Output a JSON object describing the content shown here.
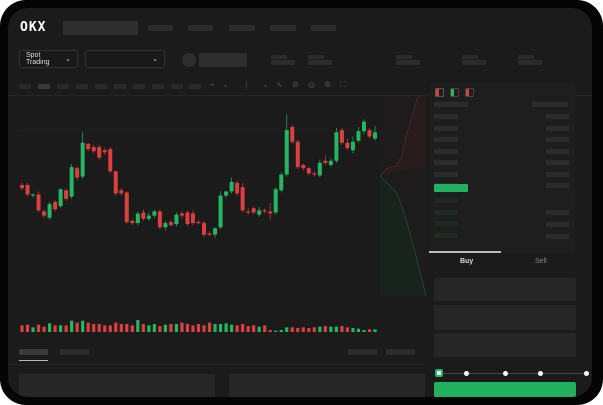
{
  "header": {
    "logo": "OKX",
    "market_selector": "Spot Trading",
    "pair_selector": ""
  },
  "toolbar": {
    "icons": [
      "line-chart-icon",
      "ruler-icon",
      "camera-icon",
      "settings-icon",
      "fullscreen-icon"
    ]
  },
  "order_panel": {
    "tabs": [
      {
        "label": "Buy"
      },
      {
        "label": "Sell"
      }
    ],
    "active_tab": "Buy",
    "slider_percent": 0,
    "slider_marks": [
      0,
      25,
      50,
      75,
      100
    ]
  },
  "colors": {
    "up": "#26b562",
    "down": "#d9403f",
    "background": "#1b1b1b",
    "accent": "#22b15f"
  },
  "chart_data": {
    "type": "candlestick",
    "title": "",
    "xlabel": "",
    "ylabel": "",
    "grid": true,
    "ohlc": [
      [
        68,
        70,
        63,
        65
      ],
      [
        68,
        70,
        57,
        59
      ],
      [
        58,
        60,
        56,
        59
      ],
      [
        59,
        62,
        42,
        44
      ],
      [
        43,
        45,
        37,
        39
      ],
      [
        37,
        52,
        35,
        50
      ],
      [
        52,
        54,
        43,
        45
      ],
      [
        48,
        65,
        46,
        64
      ],
      [
        63,
        65,
        53,
        55
      ],
      [
        57,
        88,
        55,
        85
      ],
      [
        84,
        86,
        73,
        75
      ],
      [
        76,
        118,
        74,
        108
      ],
      [
        107,
        108,
        100,
        102
      ],
      [
        104,
        106,
        98,
        100
      ],
      [
        104,
        106,
        92,
        94
      ],
      [
        101,
        103,
        97,
        99
      ],
      [
        102,
        104,
        79,
        81
      ],
      [
        81,
        82,
        58,
        60
      ],
      [
        63,
        65,
        58,
        60
      ],
      [
        61,
        62,
        31,
        33
      ],
      [
        34,
        36,
        30,
        32
      ],
      [
        32,
        43,
        30,
        41
      ],
      [
        42,
        45,
        34,
        36
      ],
      [
        36,
        42,
        34,
        39
      ],
      [
        39,
        45,
        37,
        43
      ],
      [
        43,
        45,
        26,
        28
      ],
      [
        28,
        34,
        25,
        32
      ],
      [
        33,
        35,
        29,
        30
      ],
      [
        31,
        42,
        29,
        40
      ],
      [
        41,
        43,
        37,
        39
      ],
      [
        42,
        44,
        29,
        31
      ],
      [
        41,
        44,
        30,
        32
      ],
      [
        33,
        35,
        31,
        32
      ],
      [
        32,
        34,
        19,
        21
      ],
      [
        22,
        24,
        20,
        21
      ],
      [
        21,
        28,
        18,
        27
      ],
      [
        28,
        62,
        26,
        58
      ],
      [
        58,
        62,
        56,
        62
      ],
      [
        62,
        75,
        60,
        71
      ],
      [
        70,
        72,
        58,
        60
      ],
      [
        66,
        70,
        42,
        44
      ],
      [
        43,
        46,
        40,
        42
      ],
      [
        46,
        48,
        40,
        42
      ],
      [
        40,
        47,
        38,
        44
      ],
      [
        44,
        46,
        41,
        43
      ],
      [
        43,
        51,
        35,
        41
      ],
      [
        42,
        66,
        40,
        64
      ],
      [
        63,
        80,
        61,
        78
      ],
      [
        78,
        135,
        76,
        120
      ],
      [
        123,
        125,
        107,
        109
      ],
      [
        109,
        111,
        83,
        85
      ],
      [
        87,
        88,
        82,
        84
      ],
      [
        84,
        85,
        77,
        79
      ],
      [
        79,
        81,
        76,
        78
      ],
      [
        77,
        92,
        75,
        89
      ],
      [
        91,
        96,
        87,
        89
      ],
      [
        87,
        93,
        85,
        91
      ],
      [
        91,
        122,
        89,
        118
      ],
      [
        120,
        122,
        106,
        108
      ],
      [
        108,
        112,
        101,
        103
      ],
      [
        101,
        114,
        98,
        109
      ],
      [
        110,
        123,
        108,
        119
      ],
      [
        119,
        130,
        116,
        128
      ],
      [
        120,
        122,
        112,
        114
      ],
      [
        112,
        124,
        110,
        118
      ]
    ],
    "volume": [
      10,
      11,
      7,
      11,
      8,
      13,
      10,
      10,
      10,
      17,
      14,
      17,
      14,
      12,
      12,
      10,
      10,
      14,
      12,
      12,
      10,
      18,
      12,
      10,
      12,
      9,
      11,
      12,
      12,
      14,
      12,
      10,
      12,
      10,
      14,
      12,
      12,
      13,
      11,
      10,
      12,
      9,
      10,
      8,
      10,
      3,
      2,
      3,
      7,
      7,
      6,
      7,
      6,
      7,
      8,
      9,
      8,
      8,
      9,
      7,
      6,
      5,
      3,
      4,
      4
    ]
  }
}
